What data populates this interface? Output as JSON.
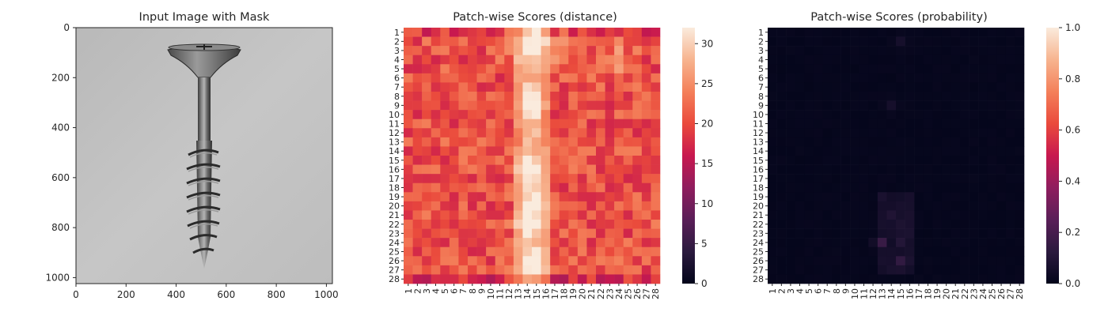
{
  "chart_data": [
    {
      "type": "image",
      "title": "Input Image with Mask",
      "xlim": [
        0,
        1024
      ],
      "ylim": [
        1024,
        0
      ],
      "xticks": [
        "0",
        "200",
        "400",
        "600",
        "800",
        "1000"
      ],
      "yticks": [
        "0",
        "200",
        "400",
        "600",
        "800",
        "1000"
      ],
      "image_subject": "screw"
    },
    {
      "type": "heatmap",
      "title": "Patch-wise Scores (distance)",
      "rows": 28,
      "cols": 28,
      "row_labels": [
        "1",
        "2",
        "3",
        "4",
        "5",
        "6",
        "7",
        "8",
        "9",
        "10",
        "11",
        "12",
        "13",
        "14",
        "15",
        "16",
        "17",
        "18",
        "19",
        "20",
        "21",
        "22",
        "23",
        "24",
        "25",
        "26",
        "27",
        "28"
      ],
      "col_labels": [
        "1",
        "2",
        "3",
        "4",
        "5",
        "6",
        "7",
        "8",
        "9",
        "10",
        "11",
        "12",
        "13",
        "14",
        "15",
        "16",
        "17",
        "18",
        "19",
        "20",
        "21",
        "22",
        "23",
        "24",
        "25",
        "26",
        "27",
        "28"
      ],
      "colorbar": {
        "min": 0,
        "max": 32,
        "ticks": [
          "0",
          "5",
          "10",
          "15",
          "20",
          "25",
          "30"
        ],
        "colormap": "rocket"
      },
      "background_range": [
        17,
        24
      ],
      "hotspots": [
        {
          "row": 2,
          "col": 15,
          "value": 28
        },
        {
          "row": 4,
          "col": 24,
          "value": 27
        },
        {
          "row": 9,
          "col": 14,
          "value": 28
        },
        {
          "row": 16,
          "col": 14,
          "value": 29
        },
        {
          "row": 20,
          "col": 15,
          "value": 31
        },
        {
          "row": 22,
          "col": 14,
          "value": 30
        },
        {
          "row": 26,
          "col": 15,
          "value": 31
        }
      ]
    },
    {
      "type": "heatmap",
      "title": "Patch-wise Scores (probability)",
      "rows": 28,
      "cols": 28,
      "row_labels": [
        "1",
        "2",
        "3",
        "4",
        "5",
        "6",
        "7",
        "8",
        "9",
        "10",
        "11",
        "12",
        "13",
        "14",
        "15",
        "16",
        "17",
        "18",
        "19",
        "20",
        "21",
        "22",
        "23",
        "24",
        "25",
        "26",
        "27",
        "28"
      ],
      "col_labels": [
        "1",
        "2",
        "3",
        "4",
        "5",
        "6",
        "7",
        "8",
        "9",
        "10",
        "11",
        "12",
        "13",
        "14",
        "15",
        "16",
        "17",
        "18",
        "19",
        "20",
        "21",
        "22",
        "23",
        "24",
        "25",
        "26",
        "27",
        "28"
      ],
      "colorbar": {
        "min": 0.0,
        "max": 1.0,
        "ticks": [
          "0.0",
          "0.2",
          "0.4",
          "0.6",
          "0.8",
          "1.0"
        ],
        "colormap": "rocket"
      },
      "hotspots": [
        {
          "row": 24,
          "col": 13,
          "value": 0.16
        },
        {
          "row": 26,
          "col": 15,
          "value": 0.14
        },
        {
          "row": 24,
          "col": 15,
          "value": 0.1
        },
        {
          "row": 21,
          "col": 14,
          "value": 0.09
        },
        {
          "row": 2,
          "col": 15,
          "value": 0.06
        },
        {
          "row": 9,
          "col": 14,
          "value": 0.06
        }
      ]
    }
  ]
}
